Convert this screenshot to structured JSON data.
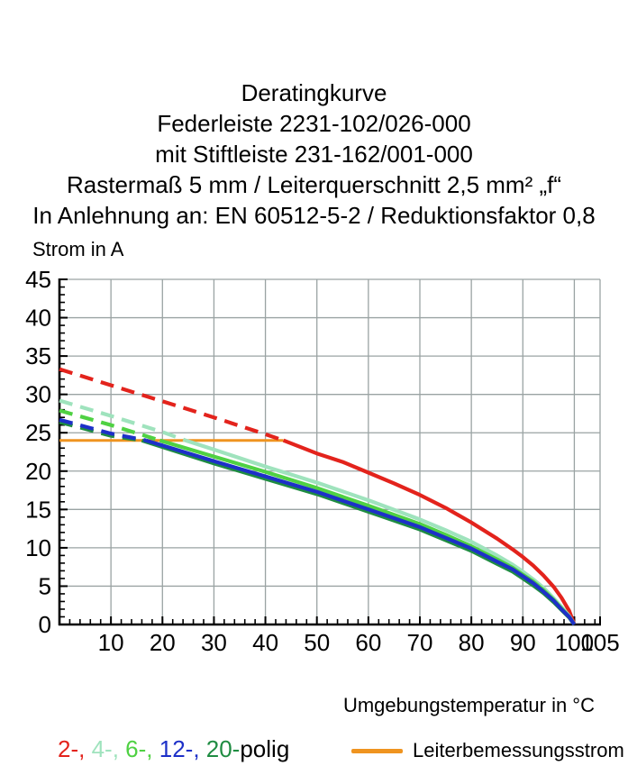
{
  "header": {
    "lines": [
      "Deratingkurve",
      "Federleiste 2231-102/026-000",
      "mit Stiftleiste 231-162/001-000",
      "Rastermaß 5 mm / Leiterquerschnitt 2,5 mm² „f“",
      "In Anlehnung an: EN 60512-5-2 / Reduktionsfaktor 0,8"
    ]
  },
  "legend": {
    "poles": [
      {
        "label": "2-",
        "color": "#e3231c"
      },
      {
        "label": "4-",
        "color": "#9fe3bd"
      },
      {
        "label": "6-",
        "color": "#4fd143"
      },
      {
        "label": "12-",
        "color": "#1d30c8"
      },
      {
        "label": "20-",
        "color": "#1f8c42"
      }
    ],
    "separator": ", ",
    "suffix": "polig",
    "reference_label": "Leiterbemessungsstrom",
    "reference_color": "#ef9420"
  },
  "chart_data": {
    "type": "line",
    "title": "Deratingkurve",
    "xlabel": "Umgebungstemperatur in °C",
    "ylabel": "Strom in A",
    "xlim": [
      0,
      105
    ],
    "ylim": [
      0,
      45
    ],
    "grid": true,
    "grid_color": "#9aa3a3",
    "axis_color": "#000000",
    "x_gridlines": [
      10,
      20,
      30,
      40,
      50,
      60,
      70,
      80,
      90,
      100,
      105
    ],
    "y_gridlines": [
      5,
      10,
      15,
      20,
      25,
      30,
      35,
      40,
      45
    ],
    "x_tick_labels": [
      10,
      20,
      30,
      40,
      50,
      60,
      70,
      80,
      90,
      100,
      105
    ],
    "y_tick_labels": [
      0,
      5,
      10,
      15,
      20,
      25,
      30,
      35,
      40,
      45
    ],
    "x_minor_step": 2,
    "y_minor_step": 1,
    "legend_position": "bottom",
    "reference_line": {
      "label": "Leiterbemessungsstrom",
      "value": 24,
      "x_start": 0,
      "x_end": 43.5,
      "color": "#ef9420"
    },
    "dash_note": "curves are dashed above the reference line value (24 A), solid below",
    "series": [
      {
        "name": "2-polig",
        "color": "#e3231c",
        "solid_from_x": 43.5,
        "points": [
          [
            0,
            33.3
          ],
          [
            10,
            31.2
          ],
          [
            20,
            29.1
          ],
          [
            30,
            27.0
          ],
          [
            40,
            24.8
          ],
          [
            43.5,
            24.0
          ],
          [
            50,
            22.3
          ],
          [
            55,
            21.2
          ],
          [
            60,
            19.8
          ],
          [
            65,
            18.4
          ],
          [
            70,
            16.9
          ],
          [
            75,
            15.2
          ],
          [
            80,
            13.3
          ],
          [
            85,
            11.2
          ],
          [
            88,
            9.8
          ],
          [
            90,
            8.8
          ],
          [
            92,
            7.7
          ],
          [
            94,
            6.4
          ],
          [
            96,
            4.9
          ],
          [
            97.5,
            3.5
          ],
          [
            99,
            1.8
          ],
          [
            100,
            0
          ]
        ]
      },
      {
        "name": "4-polig",
        "color": "#9fe3bd",
        "solid_from_x": 24.5,
        "points": [
          [
            0,
            29.2
          ],
          [
            10,
            27.2
          ],
          [
            20,
            25.1
          ],
          [
            24.5,
            24.0
          ],
          [
            30,
            22.8
          ],
          [
            40,
            20.6
          ],
          [
            50,
            18.5
          ],
          [
            60,
            16.2
          ],
          [
            70,
            13.7
          ],
          [
            75,
            12.3
          ],
          [
            80,
            10.8
          ],
          [
            85,
            9.0
          ],
          [
            88,
            7.8
          ],
          [
            90,
            6.9
          ],
          [
            92,
            5.9
          ],
          [
            94,
            4.8
          ],
          [
            96,
            3.4
          ],
          [
            97.5,
            2.3
          ],
          [
            99,
            1.1
          ],
          [
            100,
            0
          ]
        ]
      },
      {
        "name": "6-polig",
        "color": "#4fd143",
        "solid_from_x": 19.5,
        "points": [
          [
            0,
            27.9
          ],
          [
            10,
            26.0
          ],
          [
            19.5,
            24.0
          ],
          [
            30,
            21.9
          ],
          [
            40,
            19.9
          ],
          [
            50,
            17.8
          ],
          [
            60,
            15.5
          ],
          [
            70,
            13.1
          ],
          [
            75,
            11.7
          ],
          [
            80,
            10.2
          ],
          [
            85,
            8.5
          ],
          [
            88,
            7.4
          ],
          [
            90,
            6.5
          ],
          [
            92,
            5.6
          ],
          [
            94,
            4.5
          ],
          [
            96,
            3.2
          ],
          [
            97.5,
            2.1
          ],
          [
            99,
            1.0
          ],
          [
            100,
            0
          ]
        ]
      },
      {
        "name": "20-polig",
        "color": "#1f8c42",
        "solid_from_x": 16,
        "points": [
          [
            0,
            26.4
          ],
          [
            10,
            24.6
          ],
          [
            16,
            24.0
          ],
          [
            30,
            21.0
          ],
          [
            40,
            19.0
          ],
          [
            50,
            17.0
          ],
          [
            60,
            14.7
          ],
          [
            70,
            12.4
          ],
          [
            75,
            11.0
          ],
          [
            80,
            9.6
          ],
          [
            85,
            7.9
          ],
          [
            88,
            6.9
          ],
          [
            90,
            6.0
          ],
          [
            92,
            5.1
          ],
          [
            94,
            4.1
          ],
          [
            96,
            2.9
          ],
          [
            97.5,
            1.9
          ],
          [
            99,
            0.9
          ],
          [
            100,
            0
          ]
        ]
      },
      {
        "name": "12-polig",
        "color": "#1d30c8",
        "solid_from_x": 16.8,
        "points": [
          [
            0,
            26.7
          ],
          [
            10,
            24.9
          ],
          [
            16.8,
            24.0
          ],
          [
            30,
            21.3
          ],
          [
            40,
            19.3
          ],
          [
            50,
            17.3
          ],
          [
            60,
            15.0
          ],
          [
            70,
            12.7
          ],
          [
            75,
            11.3
          ],
          [
            80,
            9.9
          ],
          [
            85,
            8.2
          ],
          [
            88,
            7.2
          ],
          [
            90,
            6.3
          ],
          [
            92,
            5.4
          ],
          [
            94,
            4.3
          ],
          [
            96,
            3.1
          ],
          [
            97.5,
            2.0
          ],
          [
            99,
            1.0
          ],
          [
            100,
            0
          ]
        ]
      }
    ]
  }
}
